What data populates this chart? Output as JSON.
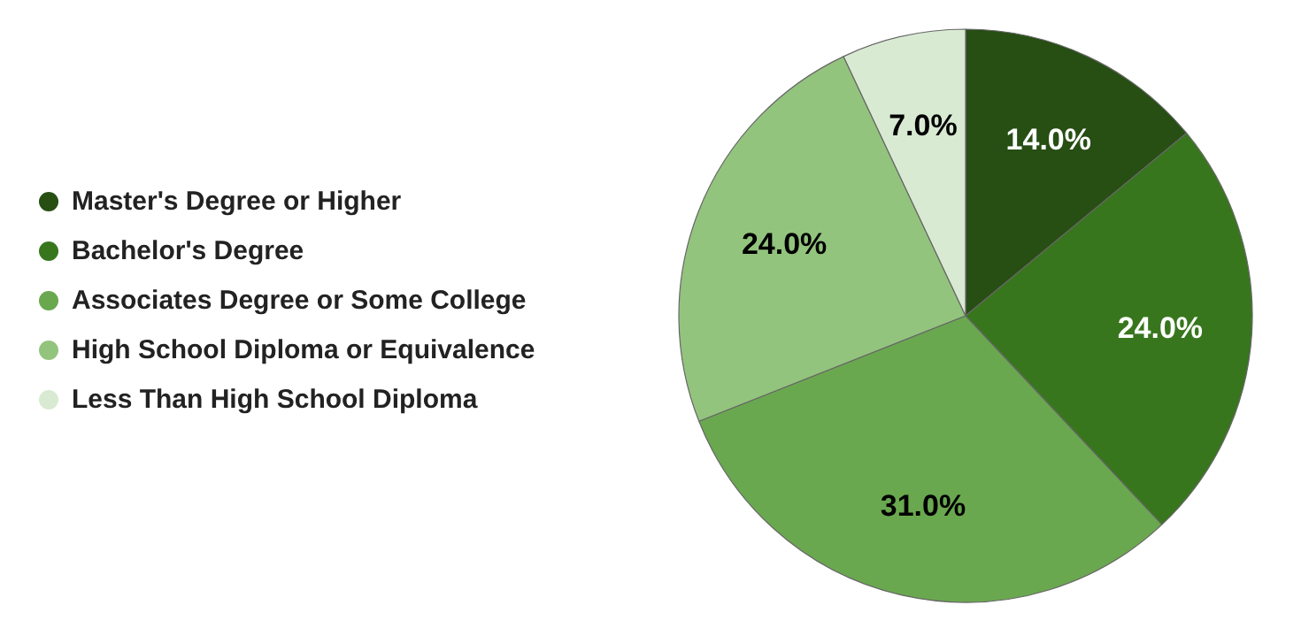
{
  "chart_data": {
    "type": "pie",
    "categories": [
      "Master's Degree or Higher",
      "Bachelor's Degree",
      "Associates Degree or Some College",
      "High School Diploma or Equivalence",
      "Less Than High School Diploma"
    ],
    "values": [
      14.0,
      24.0,
      31.0,
      24.0,
      7.0
    ],
    "value_labels": [
      "14.0%",
      "24.0%",
      "31.0%",
      "24.0%",
      "7.0%"
    ],
    "colors": [
      "#274e13",
      "#38761d",
      "#6aa84f",
      "#93c47d",
      "#d9ead3"
    ],
    "legend": "left"
  }
}
